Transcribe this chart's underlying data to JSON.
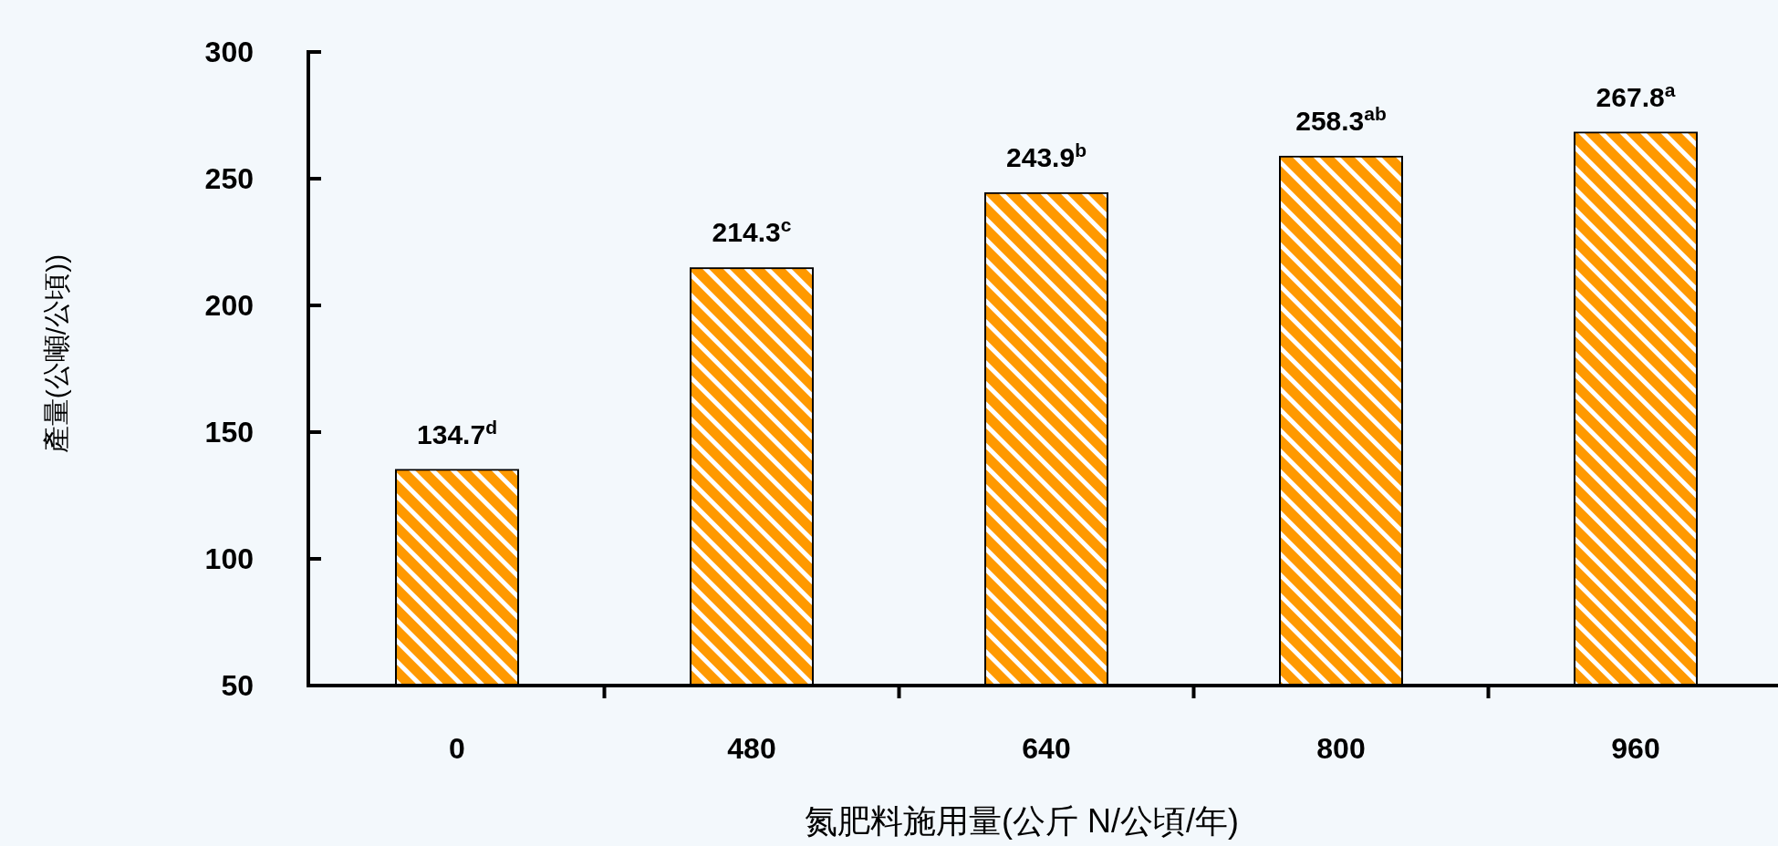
{
  "chart_data": {
    "type": "bar",
    "xlabel": "氮肥料施用量(公斤 N/公頃/年)",
    "ylabel": "產量(公噸/公頃))",
    "categories": [
      "0",
      "480",
      "640",
      "800",
      "960"
    ],
    "values": [
      134.7,
      214.3,
      243.9,
      258.3,
      267.8
    ],
    "color": "#ff9900",
    "value_labels": [
      "134.7$^{d}$",
      "214.3$^{c}$",
      "243.9$^{b}$",
      "258.3$^{ab}$",
      "267.8$^{a}$"
    ],
    "ylim": [
      50,
      300
    ],
    "yticks": [
      50,
      100,
      150,
      200,
      250,
      300
    ],
    "grid": false
  }
}
